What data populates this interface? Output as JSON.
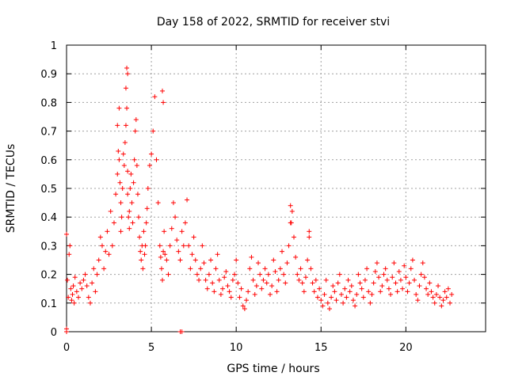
{
  "chart_data": {
    "type": "scatter",
    "title": "Day 158 of 2022, SRMTID for receiver stvi",
    "xlabel": "GPS time / hours",
    "ylabel": "SRMTID / TECUs",
    "xlim": [
      0,
      24.7
    ],
    "ylim": [
      0,
      1
    ],
    "xticks": [
      0,
      5,
      10,
      15,
      20
    ],
    "xtick_labels": [
      "0",
      "5",
      "10",
      "15",
      "20"
    ],
    "yticks": [
      0,
      0.1,
      0.2,
      0.3,
      0.4,
      0.5,
      0.6,
      0.7,
      0.8,
      0.9,
      1
    ],
    "ytick_labels": [
      "0",
      "0.1",
      "0.2",
      "0.3",
      "0.4",
      "0.5",
      "0.6",
      "0.7",
      "0.8",
      "0.9",
      "1"
    ],
    "grid": true,
    "marker": "+",
    "color": "#ff0000",
    "series": [
      {
        "name": "SRMTID",
        "x": [
          0.0,
          0.05,
          0.1,
          0.15,
          0.2,
          0.25,
          0.3,
          0.35,
          0.4,
          0.45,
          0.5,
          0.6,
          0.7,
          0.8,
          0.9,
          1.0,
          1.1,
          1.2,
          1.3,
          1.4,
          1.5,
          1.6,
          1.7,
          1.8,
          1.9,
          2.0,
          2.1,
          2.2,
          2.3,
          2.4,
          2.5,
          2.6,
          2.7,
          2.8,
          2.9,
          3.0,
          3.0,
          3.05,
          3.1,
          3.1,
          3.15,
          3.2,
          3.2,
          3.25,
          3.3,
          3.35,
          3.4,
          3.45,
          3.5,
          3.5,
          3.55,
          3.6,
          3.6,
          3.65,
          3.7,
          3.7,
          3.75,
          3.8,
          3.85,
          3.9,
          3.95,
          4.0,
          4.05,
          4.1,
          4.15,
          4.2,
          4.25,
          4.3,
          4.35,
          4.4,
          4.45,
          4.5,
          4.55,
          4.6,
          4.65,
          4.7,
          4.75,
          4.8,
          4.9,
          5.0,
          5.1,
          5.2,
          5.3,
          5.4,
          5.5,
          5.55,
          5.6,
          5.65,
          5.7,
          5.75,
          5.8,
          5.9,
          6.0,
          6.1,
          6.2,
          6.3,
          6.4,
          6.5,
          6.6,
          6.7,
          6.8,
          6.9,
          7.0,
          7.1,
          7.2,
          7.3,
          7.4,
          7.5,
          7.6,
          7.7,
          7.8,
          7.9,
          8.0,
          8.1,
          8.2,
          8.3,
          8.4,
          8.5,
          8.6,
          8.7,
          8.8,
          8.9,
          9.0,
          9.1,
          9.2,
          9.3,
          9.4,
          9.5,
          9.6,
          9.7,
          9.8,
          9.9,
          10.0,
          10.1,
          10.2,
          10.3,
          10.4,
          10.5,
          10.6,
          10.7,
          10.8,
          10.9,
          11.0,
          11.1,
          11.2,
          11.3,
          11.4,
          11.5,
          11.6,
          11.7,
          11.8,
          11.9,
          12.0,
          12.1,
          12.2,
          12.3,
          12.4,
          12.5,
          12.6,
          12.7,
          12.8,
          12.9,
          13.0,
          13.1,
          13.2,
          13.3,
          13.4,
          13.5,
          13.6,
          13.7,
          13.8,
          13.9,
          14.0,
          14.1,
          14.2,
          14.3,
          14.4,
          14.5,
          14.6,
          14.7,
          14.8,
          14.9,
          15.0,
          15.1,
          15.2,
          15.3,
          15.4,
          15.5,
          15.6,
          15.7,
          15.8,
          15.9,
          16.0,
          16.1,
          16.2,
          16.3,
          16.4,
          16.5,
          16.6,
          16.7,
          16.8,
          16.9,
          17.0,
          17.1,
          17.2,
          17.3,
          17.4,
          17.5,
          17.6,
          17.7,
          17.8,
          17.9,
          18.0,
          18.1,
          18.2,
          18.3,
          18.4,
          18.5,
          18.6,
          18.7,
          18.8,
          18.9,
          19.0,
          19.1,
          19.2,
          19.3,
          19.4,
          19.5,
          19.6,
          19.7,
          19.8,
          19.9,
          20.0,
          20.1,
          20.2,
          20.3,
          20.4,
          20.5,
          20.6,
          20.7,
          20.8,
          20.9,
          21.0,
          21.1,
          21.2,
          21.3,
          21.4,
          21.5,
          21.6,
          21.7,
          21.8,
          21.9,
          22.0,
          22.1,
          22.2,
          22.3,
          22.4,
          22.5,
          22.6,
          22.7,
          0.0,
          0.0,
          6.7,
          6.8,
          3.55,
          3.6,
          5.65,
          5.7,
          13.2,
          13.25,
          14.3
        ],
        "y": [
          0.34,
          0.18,
          0.12,
          0.27,
          0.3,
          0.15,
          0.11,
          0.13,
          0.16,
          0.1,
          0.19,
          0.14,
          0.12,
          0.17,
          0.15,
          0.18,
          0.2,
          0.16,
          0.12,
          0.1,
          0.17,
          0.22,
          0.14,
          0.2,
          0.25,
          0.33,
          0.3,
          0.22,
          0.28,
          0.35,
          0.27,
          0.42,
          0.3,
          0.38,
          0.48,
          0.55,
          0.72,
          0.63,
          0.78,
          0.6,
          0.52,
          0.45,
          0.35,
          0.4,
          0.5,
          0.62,
          0.58,
          0.66,
          0.72,
          0.85,
          0.92,
          0.56,
          0.48,
          0.4,
          0.36,
          0.42,
          0.5,
          0.55,
          0.45,
          0.38,
          0.52,
          0.6,
          0.7,
          0.74,
          0.58,
          0.48,
          0.4,
          0.33,
          0.28,
          0.25,
          0.3,
          0.22,
          0.35,
          0.27,
          0.3,
          0.38,
          0.43,
          0.5,
          0.58,
          0.62,
          0.7,
          0.82,
          0.6,
          0.45,
          0.3,
          0.26,
          0.22,
          0.18,
          0.28,
          0.35,
          0.27,
          0.25,
          0.2,
          0.3,
          0.36,
          0.45,
          0.4,
          0.32,
          0.28,
          0.25,
          0.35,
          0.3,
          0.38,
          0.46,
          0.3,
          0.22,
          0.27,
          0.33,
          0.25,
          0.2,
          0.18,
          0.22,
          0.3,
          0.24,
          0.18,
          0.15,
          0.2,
          0.25,
          0.17,
          0.14,
          0.22,
          0.27,
          0.18,
          0.13,
          0.15,
          0.19,
          0.21,
          0.16,
          0.14,
          0.12,
          0.18,
          0.2,
          0.25,
          0.17,
          0.12,
          0.15,
          0.09,
          0.08,
          0.11,
          0.14,
          0.22,
          0.26,
          0.18,
          0.13,
          0.16,
          0.24,
          0.2,
          0.15,
          0.18,
          0.22,
          0.17,
          0.2,
          0.13,
          0.16,
          0.25,
          0.21,
          0.14,
          0.18,
          0.22,
          0.28,
          0.2,
          0.17,
          0.24,
          0.3,
          0.38,
          0.42,
          0.33,
          0.26,
          0.2,
          0.18,
          0.22,
          0.17,
          0.14,
          0.19,
          0.25,
          0.35,
          0.22,
          0.17,
          0.14,
          0.18,
          0.12,
          0.15,
          0.11,
          0.09,
          0.13,
          0.18,
          0.1,
          0.08,
          0.12,
          0.16,
          0.14,
          0.11,
          0.17,
          0.2,
          0.13,
          0.1,
          0.15,
          0.12,
          0.18,
          0.14,
          0.16,
          0.11,
          0.09,
          0.13,
          0.2,
          0.17,
          0.15,
          0.12,
          0.18,
          0.22,
          0.14,
          0.1,
          0.13,
          0.17,
          0.21,
          0.24,
          0.19,
          0.14,
          0.16,
          0.2,
          0.22,
          0.18,
          0.15,
          0.13,
          0.19,
          0.24,
          0.17,
          0.14,
          0.21,
          0.18,
          0.15,
          0.23,
          0.19,
          0.14,
          0.17,
          0.22,
          0.25,
          0.18,
          0.13,
          0.11,
          0.16,
          0.2,
          0.24,
          0.19,
          0.15,
          0.13,
          0.17,
          0.14,
          0.12,
          0.1,
          0.13,
          0.16,
          0.12,
          0.09,
          0.11,
          0.14,
          0.12,
          0.15,
          0.1,
          0.13,
          0.0,
          0.01,
          0.0,
          0.0,
          0.78,
          0.9,
          0.84,
          0.8,
          0.44,
          0.38,
          0.33
        ]
      }
    ]
  }
}
